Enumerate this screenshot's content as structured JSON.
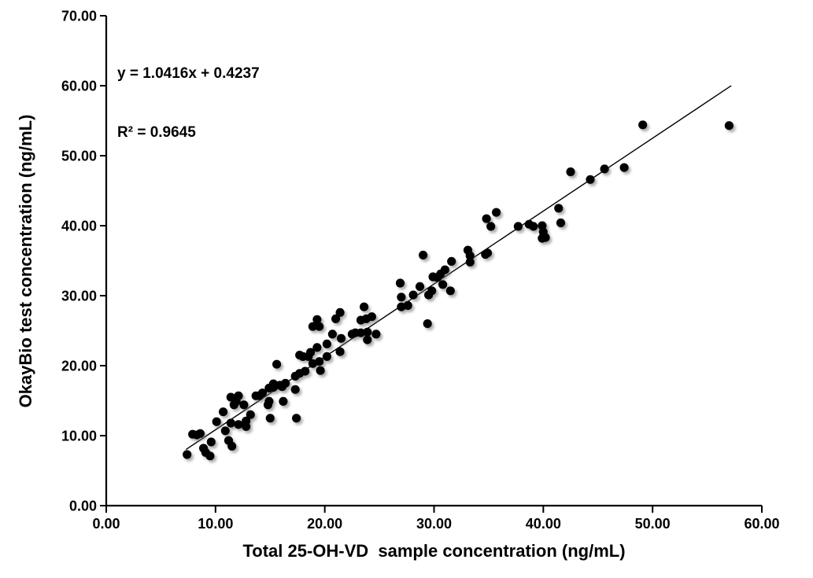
{
  "chart_data": {
    "type": "scatter",
    "title": "",
    "xlabel": "Total 25-OH-VD  sample concentration (ng/mL)",
    "ylabel": "OkayBio test concentration (ng/mL)",
    "xlim": [
      0,
      60
    ],
    "ylim": [
      0,
      70
    ],
    "xticks": [
      0,
      10,
      20,
      30,
      40,
      50,
      60
    ],
    "yticks": [
      0,
      10,
      20,
      30,
      40,
      50,
      60,
      70
    ],
    "tick_decimals": 2,
    "grid": false,
    "legend": null,
    "axis_color": "#000000",
    "point_color": "#000000",
    "trendline_color": "#000000",
    "annotation": {
      "equation": "y = 1.0416x + 0.4237",
      "r_squared": "R² = 0.9645"
    },
    "trendline": {
      "slope": 1.0416,
      "intercept": 0.4237,
      "x_start": 7.3,
      "x_end": 57.2
    },
    "points": [
      [
        7.4,
        7.3
      ],
      [
        7.9,
        10.2
      ],
      [
        8.3,
        10.1
      ],
      [
        8.6,
        10.3
      ],
      [
        8.9,
        8.2
      ],
      [
        9.1,
        7.6
      ],
      [
        9.5,
        7.1
      ],
      [
        9.6,
        9.1
      ],
      [
        10.1,
        12.0
      ],
      [
        10.7,
        13.4
      ],
      [
        10.9,
        10.7
      ],
      [
        11.2,
        9.3
      ],
      [
        11.5,
        8.5
      ],
      [
        11.4,
        11.8
      ],
      [
        12.1,
        11.6
      ],
      [
        12.8,
        11.3
      ],
      [
        12.8,
        12.1
      ],
      [
        13.2,
        13.0
      ],
      [
        11.4,
        15.5
      ],
      [
        11.7,
        14.4
      ],
      [
        11.9,
        14.9
      ],
      [
        12.1,
        15.7
      ],
      [
        12.6,
        14.4
      ],
      [
        13.7,
        15.7
      ],
      [
        14.0,
        15.7
      ],
      [
        14.3,
        16.1
      ],
      [
        14.8,
        14.4
      ],
      [
        14.9,
        14.9
      ],
      [
        14.9,
        16.8
      ],
      [
        15.0,
        12.5
      ],
      [
        15.3,
        16.9
      ],
      [
        15.3,
        17.4
      ],
      [
        15.6,
        20.2
      ],
      [
        15.9,
        17.2
      ],
      [
        16.1,
        17.0
      ],
      [
        16.2,
        14.9
      ],
      [
        16.4,
        17.5
      ],
      [
        17.3,
        16.6
      ],
      [
        17.4,
        12.5
      ],
      [
        17.3,
        18.5
      ],
      [
        17.7,
        18.9
      ],
      [
        17.7,
        21.5
      ],
      [
        18.0,
        21.3
      ],
      [
        18.2,
        19.2
      ],
      [
        18.5,
        21.3
      ],
      [
        18.7,
        21.9
      ],
      [
        18.9,
        20.3
      ],
      [
        18.9,
        25.6
      ],
      [
        19.3,
        22.6
      ],
      [
        19.3,
        26.6
      ],
      [
        19.5,
        20.6
      ],
      [
        19.5,
        25.6
      ],
      [
        19.6,
        19.3
      ],
      [
        20.2,
        21.3
      ],
      [
        20.2,
        23.1
      ],
      [
        20.7,
        24.5
      ],
      [
        21.0,
        26.7
      ],
      [
        21.4,
        22.0
      ],
      [
        21.4,
        27.6
      ],
      [
        21.5,
        23.9
      ],
      [
        22.5,
        24.5
      ],
      [
        22.8,
        24.7
      ],
      [
        23.3,
        24.7
      ],
      [
        23.3,
        26.5
      ],
      [
        23.6,
        28.4
      ],
      [
        23.8,
        26.7
      ],
      [
        23.9,
        24.8
      ],
      [
        23.9,
        23.7
      ],
      [
        24.3,
        27.0
      ],
      [
        24.7,
        24.5
      ],
      [
        26.9,
        31.8
      ],
      [
        27.0,
        29.8
      ],
      [
        27.0,
        28.4
      ],
      [
        27.6,
        28.6
      ],
      [
        28.1,
        30.1
      ],
      [
        28.7,
        31.3
      ],
      [
        29.0,
        35.8
      ],
      [
        29.4,
        26.0
      ],
      [
        29.5,
        30.1
      ],
      [
        29.8,
        30.7
      ],
      [
        29.9,
        32.7
      ],
      [
        30.3,
        32.6
      ],
      [
        30.6,
        33.1
      ],
      [
        30.8,
        31.6
      ],
      [
        31.0,
        33.7
      ],
      [
        31.5,
        30.7
      ],
      [
        31.6,
        34.9
      ],
      [
        33.1,
        36.5
      ],
      [
        33.3,
        35.7
      ],
      [
        33.3,
        34.8
      ],
      [
        34.7,
        35.9
      ],
      [
        34.9,
        36.1
      ],
      [
        34.8,
        41.0
      ],
      [
        35.2,
        39.9
      ],
      [
        35.7,
        41.9
      ],
      [
        37.7,
        39.9
      ],
      [
        38.7,
        40.2
      ],
      [
        39.1,
        39.9
      ],
      [
        39.9,
        40.0
      ],
      [
        40.0,
        39.1
      ],
      [
        39.9,
        38.2
      ],
      [
        40.2,
        38.3
      ],
      [
        41.4,
        42.5
      ],
      [
        41.6,
        40.4
      ],
      [
        42.5,
        47.7
      ],
      [
        44.3,
        46.6
      ],
      [
        45.6,
        48.1
      ],
      [
        47.4,
        48.3
      ],
      [
        49.1,
        54.4
      ],
      [
        57.0,
        54.3
      ]
    ]
  }
}
